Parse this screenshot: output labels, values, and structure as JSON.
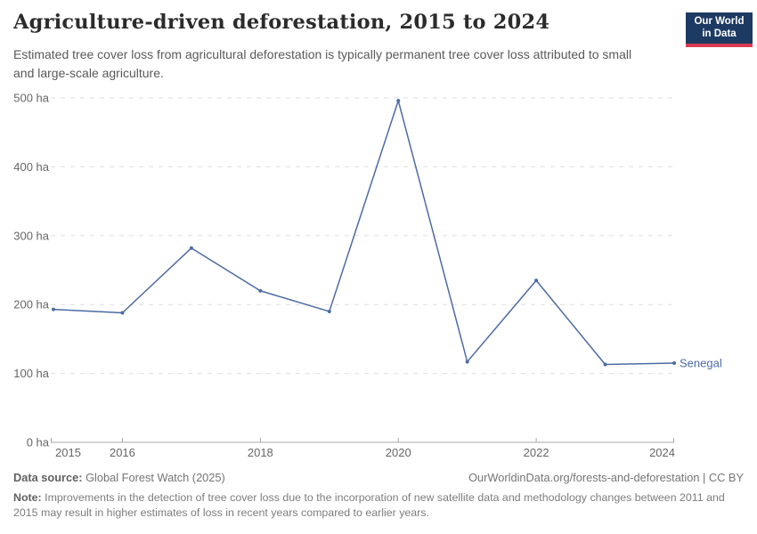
{
  "header": {
    "title": "Agriculture-driven deforestation, 2015 to 2024",
    "subtitle": "Estimated tree cover loss from agricultural deforestation is typically permanent tree cover loss attributed to small and large-scale agriculture.",
    "logo": {
      "line1": "Our World",
      "line2": "in Data",
      "bg_color": "#1d3a63",
      "accent_color": "#d73c50"
    }
  },
  "chart_data": {
    "type": "line",
    "title": "Agriculture-driven deforestation, 2015 to 2024",
    "unit": "ha",
    "x": [
      2015,
      2016,
      2017,
      2018,
      2019,
      2020,
      2021,
      2022,
      2023,
      2024
    ],
    "series": [
      {
        "name": "Senegal",
        "color": "#4c6ba4",
        "values": [
          193,
          188,
          282,
          220,
          190,
          496,
          117,
          235,
          113,
          115
        ]
      }
    ],
    "ylim": [
      0,
      500
    ],
    "yticks": [
      0,
      100,
      200,
      300,
      400,
      500
    ],
    "ytick_label_format": "{value} ha",
    "xticks": [
      2015,
      2016,
      2018,
      2020,
      2022,
      2024
    ],
    "grid": "horizontal-dashed",
    "legend": "end-of-line-label",
    "axis_color": "#a8a8a8",
    "grid_color": "#dedede",
    "tick_label_color": "#666666"
  },
  "footer": {
    "source_label": "Data source:",
    "source_text": "Global Forest Watch (2025)",
    "link_text": "OurWorldinData.org/forests-and-deforestation | CC BY",
    "note_label": "Note:",
    "note_text": "Improvements in the detection of tree cover loss due to the incorporation of new satellite data and methodology changes between 2011 and 2015 may result in higher estimates of loss in recent years compared to earlier years."
  }
}
